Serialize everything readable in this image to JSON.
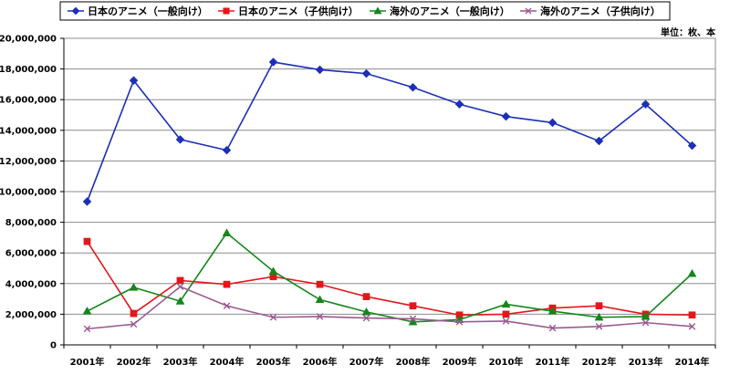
{
  "chart_data": {
    "type": "line",
    "unit_label": "単位：枚、本",
    "x": [
      "2001年",
      "2002年",
      "2003年",
      "2004年",
      "2005年",
      "2006年",
      "2007年",
      "2008年",
      "2009年",
      "2010年",
      "2011年",
      "2012年",
      "2013年",
      "2014年"
    ],
    "ylim": [
      0,
      20000000
    ],
    "yticks": [
      0,
      2000000,
      4000000,
      6000000,
      8000000,
      10000000,
      12000000,
      14000000,
      16000000,
      18000000,
      20000000
    ],
    "ytick_labels": [
      "0",
      "2,000,000",
      "4,000,000",
      "6,000,000",
      "8,000,000",
      "10,000,000",
      "12,000,000",
      "14,000,000",
      "16,000,000",
      "18,000,000",
      "20,000,000"
    ],
    "grid": "horizontal",
    "legend_position": "top",
    "series": [
      {
        "name": "日本のアニメ（一般向け）",
        "color": "#1c2fb8",
        "marker": "diamond",
        "values": [
          9350000,
          17250000,
          13400000,
          12700000,
          18450000,
          17950000,
          17700000,
          16800000,
          15700000,
          14900000,
          14500000,
          13300000,
          15700000,
          13000000
        ]
      },
      {
        "name": "日本のアニメ（子供向け）",
        "color": "#e3171b",
        "marker": "square",
        "values": [
          6750000,
          2050000,
          4200000,
          3950000,
          4450000,
          3950000,
          3150000,
          2550000,
          1950000,
          2000000,
          2400000,
          2550000,
          2000000,
          1950000
        ]
      },
      {
        "name": "海外のアニメ（一般向け）",
        "color": "#14861c",
        "marker": "triangle",
        "values": [
          2200000,
          3750000,
          2850000,
          7300000,
          4800000,
          2950000,
          2150000,
          1500000,
          1650000,
          2650000,
          2200000,
          1800000,
          1850000,
          4650000
        ]
      },
      {
        "name": "海外のアニメ（子供向け）",
        "color": "#9b5a91",
        "marker": "x",
        "values": [
          1050000,
          1350000,
          3800000,
          2550000,
          1800000,
          1850000,
          1750000,
          1700000,
          1500000,
          1550000,
          1100000,
          1200000,
          1450000,
          1200000
        ]
      }
    ]
  }
}
